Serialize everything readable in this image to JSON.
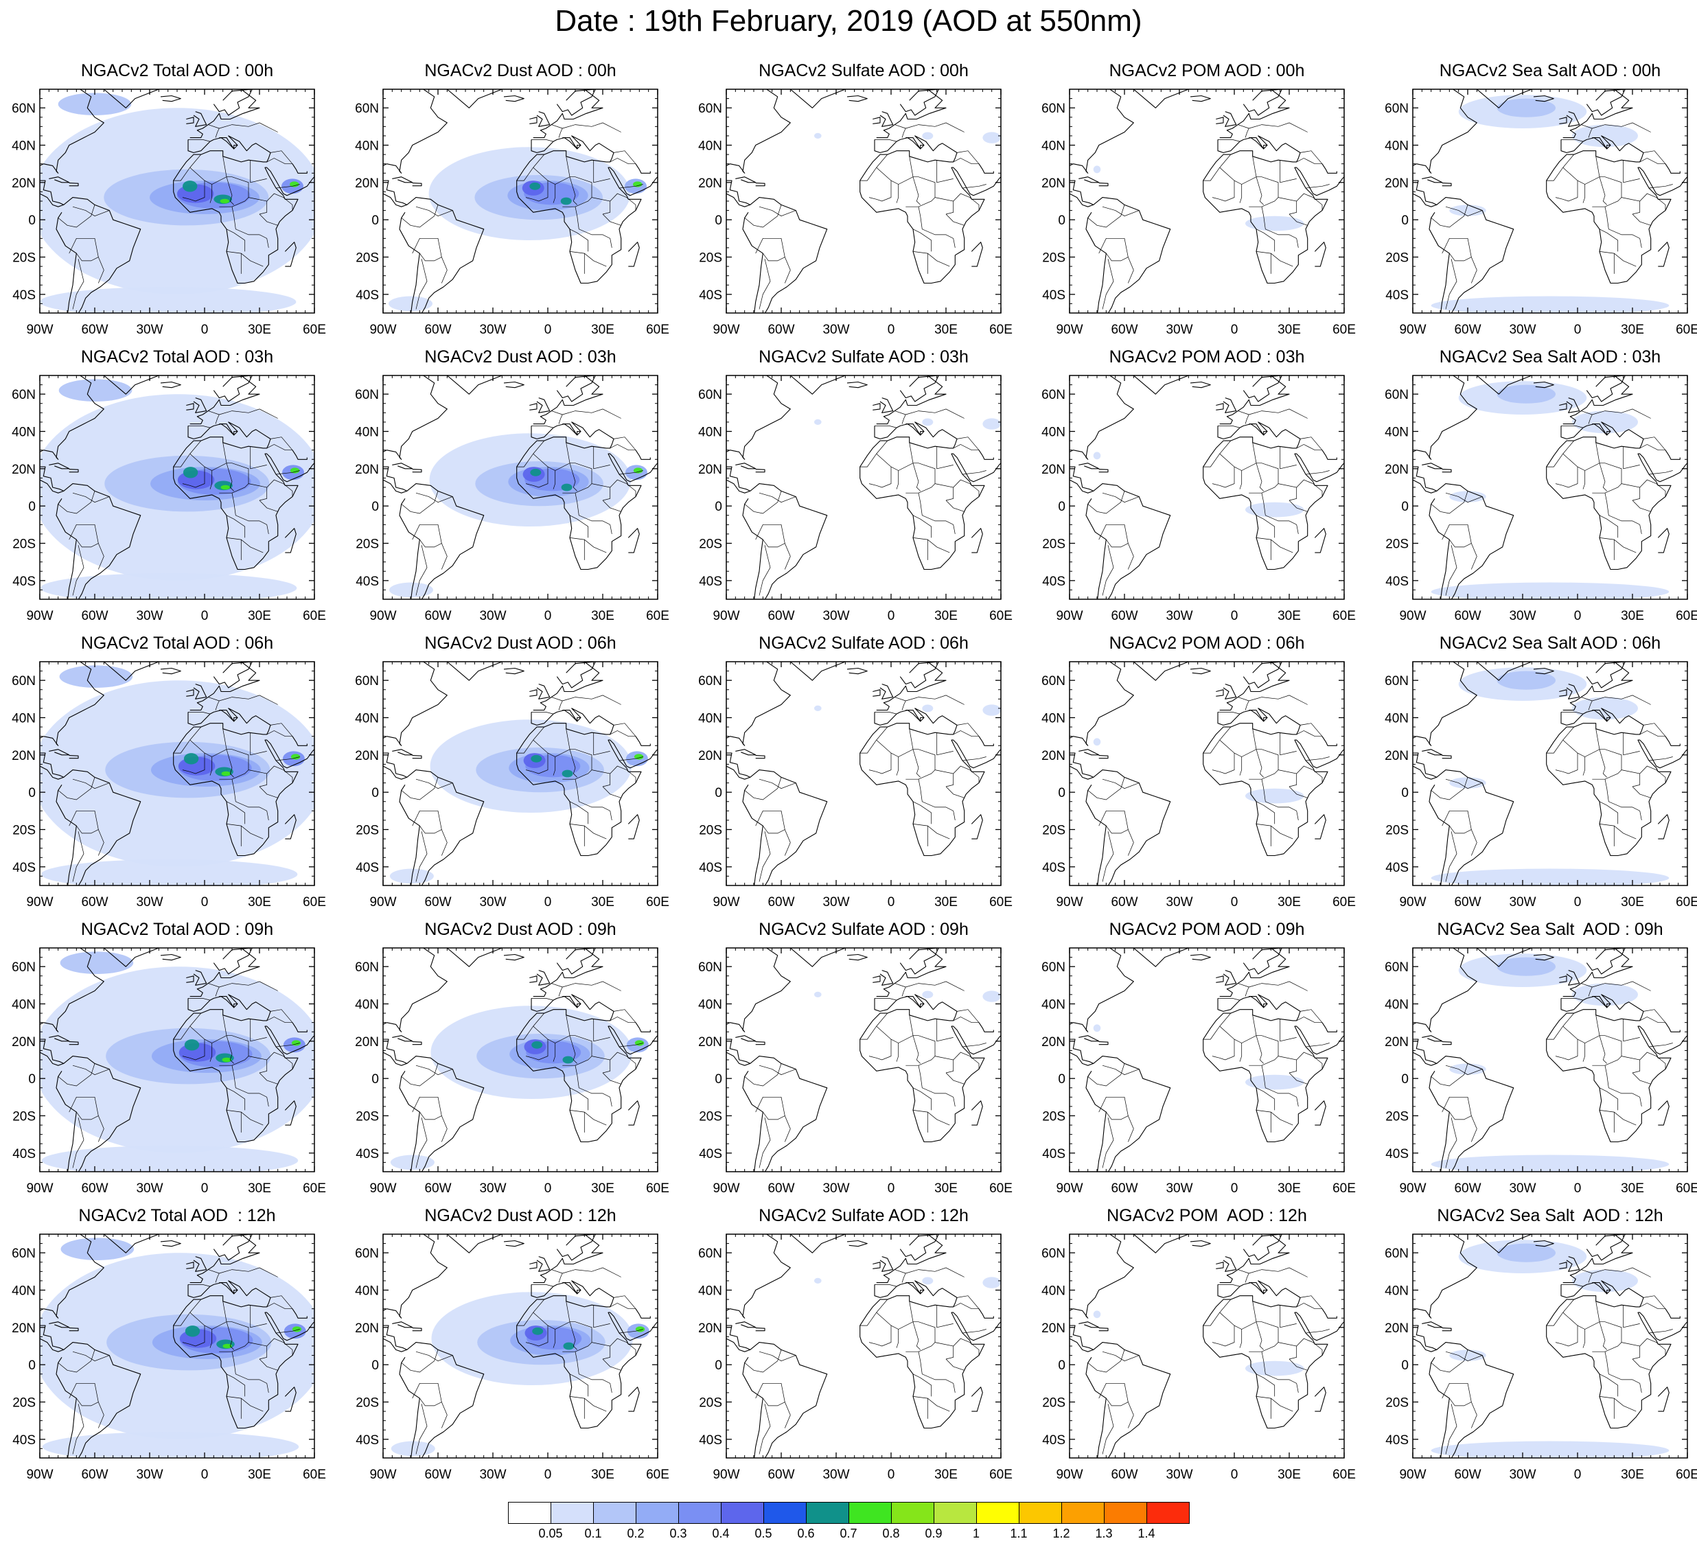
{
  "main_title": "Date : 19th February, 2019 (AOD at 550nm)",
  "column_keys": [
    "total",
    "dust",
    "sulfate",
    "pom",
    "seasalt"
  ],
  "panel_titles": [
    [
      "NGACv2 Total AOD : 00h",
      "NGACv2 Dust AOD : 00h",
      "NGACv2 Sulfate AOD : 00h",
      "NGACv2 POM AOD : 00h",
      "NGACv2 Sea Salt AOD : 00h"
    ],
    [
      "NGACv2 Total AOD : 03h",
      "NGACv2 Dust AOD : 03h",
      "NGACv2 Sulfate AOD : 03h",
      "NGACv2 POM AOD : 03h",
      "NGACv2 Sea Salt AOD : 03h"
    ],
    [
      "NGACv2 Total AOD : 06h",
      "NGACv2 Dust AOD : 06h",
      "NGACv2 Sulfate AOD : 06h",
      "NGACv2 POM AOD : 06h",
      "NGACv2 Sea Salt AOD : 06h"
    ],
    [
      "NGACv2 Total AOD : 09h",
      "NGACv2 Dust AOD : 09h",
      "NGACv2 Sulfate AOD : 09h",
      "NGACv2 POM AOD : 09h",
      "NGACv2 Sea Salt  AOD : 09h"
    ],
    [
      "NGACv2 Total AOD  : 12h",
      "NGACv2 Dust AOD : 12h",
      "NGACv2 Sulfate AOD : 12h",
      "NGACv2 POM  AOD : 12h",
      "NGACv2 Sea Salt  AOD : 12h"
    ]
  ],
  "map_extent": {
    "lon": [
      -90,
      60
    ],
    "lat": [
      -50,
      70
    ]
  },
  "lat_ticks": [
    {
      "value": 60,
      "label": "60N"
    },
    {
      "value": 40,
      "label": "40N"
    },
    {
      "value": 20,
      "label": "20N"
    },
    {
      "value": 0,
      "label": "0"
    },
    {
      "value": -20,
      "label": "20S"
    },
    {
      "value": -40,
      "label": "40S"
    }
  ],
  "lon_ticks": [
    {
      "value": -90,
      "label": "90W"
    },
    {
      "value": -60,
      "label": "60W"
    },
    {
      "value": -30,
      "label": "30W"
    },
    {
      "value": 0,
      "label": "0"
    },
    {
      "value": 30,
      "label": "30E"
    },
    {
      "value": 60,
      "label": "60E"
    }
  ],
  "colorbar": {
    "colors": [
      "#ffffff",
      "#d5e0fb",
      "#b3c6f8",
      "#93acf6",
      "#7a8ff3",
      "#5d66ec",
      "#1f58ea",
      "#10918a",
      "#3fe521",
      "#85e51a",
      "#b8e73f",
      "#fffe02",
      "#fcc700",
      "#fca001",
      "#fb7c01",
      "#fc2c0c"
    ],
    "labels": [
      "0.05",
      "0.1",
      "0.2",
      "0.3",
      "0.4",
      "0.5",
      "0.6",
      "0.7",
      "0.8",
      "0.9",
      "1",
      "1.1",
      "1.2",
      "1.3",
      "1.4"
    ]
  },
  "land_outline_color": "#000000"
}
